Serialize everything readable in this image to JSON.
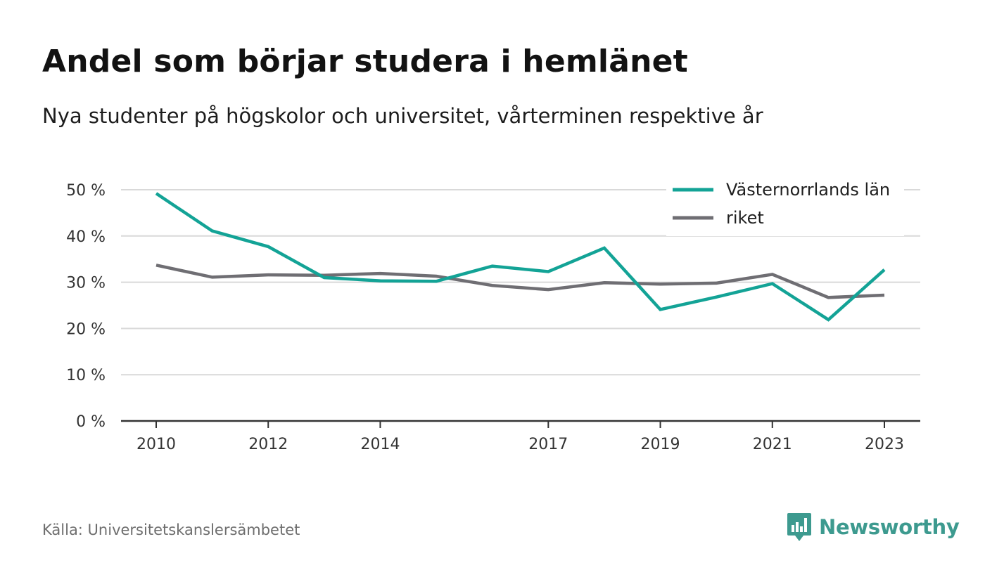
{
  "title": "Andel som börjar studera i hemlänet",
  "subtitle": "Nya studenter på högskolor och universitet, vårterminen respektive år",
  "source": "Källa: Universitetskanslersämbetet",
  "brand": {
    "name": "Newsworthy",
    "color": "#3d9a8f",
    "icon": "bar-chart-speech-bubble-icon"
  },
  "colors": {
    "gridline": "#d9d9d9",
    "axis": "#333333"
  },
  "chart_data": {
    "type": "line",
    "x": [
      2010,
      2011,
      2012,
      2013,
      2014,
      2015,
      2016,
      2017,
      2018,
      2019,
      2020,
      2021,
      2022,
      2023
    ],
    "x_ticks": [
      2010,
      2012,
      2014,
      2017,
      2019,
      2021,
      2023
    ],
    "x_tick_labels": [
      "2010",
      "2012",
      "2014",
      "2017",
      "2019",
      "2021",
      "2023"
    ],
    "y_ticks": [
      0,
      10,
      20,
      30,
      40,
      50
    ],
    "y_tick_labels": [
      "0 %",
      "10 %",
      "20 %",
      "30 %",
      "40 %",
      "50 %"
    ],
    "ylim": [
      0,
      50
    ],
    "grid": true,
    "legend_position": "top-right",
    "series": [
      {
        "name": "Västernorrlands län",
        "color": "#13a396",
        "values": [
          49.2,
          41.1,
          37.7,
          31.0,
          30.3,
          30.2,
          33.5,
          32.3,
          37.4,
          24.1,
          26.8,
          29.7,
          21.9,
          32.7
        ]
      },
      {
        "name": "riket",
        "color": "#6f6e73",
        "values": [
          33.7,
          31.1,
          31.6,
          31.5,
          31.9,
          31.3,
          29.3,
          28.4,
          29.9,
          29.6,
          29.8,
          31.7,
          26.7,
          27.2
        ]
      }
    ]
  }
}
